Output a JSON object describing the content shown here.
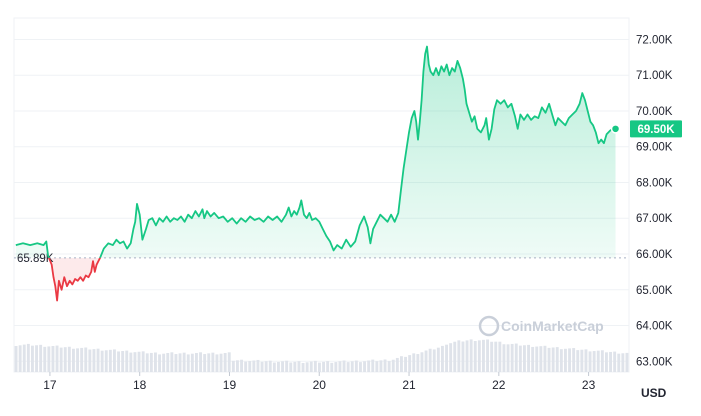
{
  "chart_data": {
    "type": "area",
    "currency": "USD",
    "reference_value": 65890,
    "reference_label": "65.89K",
    "last_value": 69500,
    "last_label": "69.50K",
    "ylim": [
      62700,
      72600
    ],
    "y_ticks": [
      {
        "value": 72000,
        "label": "72.00K"
      },
      {
        "value": 71000,
        "label": "71.00K"
      },
      {
        "value": 70000,
        "label": "70.00K"
      },
      {
        "value": 69000,
        "label": "69.00K"
      },
      {
        "value": 68000,
        "label": "68.00K"
      },
      {
        "value": 67000,
        "label": "67.00K"
      },
      {
        "value": 66000,
        "label": "66.00K"
      },
      {
        "value": 65000,
        "label": "65.00K"
      },
      {
        "value": 64000,
        "label": "64.00K"
      },
      {
        "value": 63000,
        "label": "63.00K"
      }
    ],
    "xlim": [
      16.6,
      23.45
    ],
    "x_ticks": [
      {
        "value": 17,
        "label": "17"
      },
      {
        "value": 18,
        "label": "18"
      },
      {
        "value": 19,
        "label": "19"
      },
      {
        "value": 20,
        "label": "20"
      },
      {
        "value": 21,
        "label": "21"
      },
      {
        "value": 22,
        "label": "22"
      },
      {
        "value": 23,
        "label": "23"
      }
    ],
    "grid": true,
    "colors": {
      "up": "#16c784",
      "down": "#ea3943",
      "volume": "#dfe3ea",
      "grid": "#eff2f5"
    },
    "watermark": "CoinMarketCap",
    "price_series": [
      [
        16.62,
        66250
      ],
      [
        16.7,
        66300
      ],
      [
        16.78,
        66250
      ],
      [
        16.86,
        66300
      ],
      [
        16.93,
        66250
      ],
      [
        16.96,
        66350
      ],
      [
        16.98,
        65950
      ],
      [
        17.02,
        65700
      ],
      [
        17.04,
        65350
      ],
      [
        17.06,
        65100
      ],
      [
        17.08,
        64700
      ],
      [
        17.1,
        65250
      ],
      [
        17.13,
        65000
      ],
      [
        17.16,
        65350
      ],
      [
        17.19,
        65100
      ],
      [
        17.22,
        65250
      ],
      [
        17.25,
        65150
      ],
      [
        17.28,
        65300
      ],
      [
        17.31,
        65250
      ],
      [
        17.34,
        65350
      ],
      [
        17.37,
        65250
      ],
      [
        17.4,
        65400
      ],
      [
        17.43,
        65350
      ],
      [
        17.46,
        65500
      ],
      [
        17.48,
        65800
      ],
      [
        17.5,
        65500
      ],
      [
        17.52,
        65700
      ],
      [
        17.56,
        65900
      ],
      [
        17.6,
        66150
      ],
      [
        17.65,
        66300
      ],
      [
        17.7,
        66250
      ],
      [
        17.74,
        66400
      ],
      [
        17.78,
        66300
      ],
      [
        17.82,
        66350
      ],
      [
        17.86,
        66150
      ],
      [
        17.9,
        66300
      ],
      [
        17.93,
        66700
      ],
      [
        17.95,
        66900
      ],
      [
        17.97,
        67400
      ],
      [
        18.0,
        67100
      ],
      [
        18.03,
        66400
      ],
      [
        18.07,
        66700
      ],
      [
        18.1,
        66950
      ],
      [
        18.14,
        67000
      ],
      [
        18.18,
        66800
      ],
      [
        18.22,
        67000
      ],
      [
        18.26,
        66900
      ],
      [
        18.3,
        67050
      ],
      [
        18.34,
        66900
      ],
      [
        18.38,
        67000
      ],
      [
        18.42,
        66950
      ],
      [
        18.46,
        67050
      ],
      [
        18.5,
        66900
      ],
      [
        18.54,
        67100
      ],
      [
        18.58,
        67000
      ],
      [
        18.62,
        67200
      ],
      [
        18.66,
        67050
      ],
      [
        18.7,
        67250
      ],
      [
        18.72,
        67000
      ],
      [
        18.75,
        67200
      ],
      [
        18.79,
        67050
      ],
      [
        18.83,
        67150
      ],
      [
        18.88,
        67000
      ],
      [
        18.93,
        67050
      ],
      [
        18.98,
        66900
      ],
      [
        19.03,
        67000
      ],
      [
        19.08,
        66850
      ],
      [
        19.13,
        67000
      ],
      [
        19.18,
        66900
      ],
      [
        19.23,
        67050
      ],
      [
        19.28,
        66950
      ],
      [
        19.33,
        67000
      ],
      [
        19.38,
        66900
      ],
      [
        19.43,
        67050
      ],
      [
        19.48,
        66950
      ],
      [
        19.53,
        67050
      ],
      [
        19.58,
        66900
      ],
      [
        19.63,
        67100
      ],
      [
        19.66,
        67300
      ],
      [
        19.69,
        67050
      ],
      [
        19.72,
        67200
      ],
      [
        19.75,
        67100
      ],
      [
        19.78,
        67300
      ],
      [
        19.8,
        67500
      ],
      [
        19.83,
        67100
      ],
      [
        19.86,
        67000
      ],
      [
        19.89,
        67150
      ],
      [
        19.92,
        66950
      ],
      [
        19.96,
        67000
      ],
      [
        20.0,
        66900
      ],
      [
        20.04,
        66700
      ],
      [
        20.08,
        66500
      ],
      [
        20.12,
        66350
      ],
      [
        20.16,
        66100
      ],
      [
        20.2,
        66250
      ],
      [
        20.25,
        66150
      ],
      [
        20.3,
        66400
      ],
      [
        20.35,
        66200
      ],
      [
        20.4,
        66350
      ],
      [
        20.45,
        66800
      ],
      [
        20.5,
        67050
      ],
      [
        20.54,
        66750
      ],
      [
        20.57,
        66300
      ],
      [
        20.6,
        66700
      ],
      [
        20.64,
        66900
      ],
      [
        20.68,
        67100
      ],
      [
        20.72,
        67000
      ],
      [
        20.76,
        66900
      ],
      [
        20.8,
        67100
      ],
      [
        20.84,
        66900
      ],
      [
        20.88,
        67150
      ],
      [
        20.91,
        67800
      ],
      [
        20.94,
        68400
      ],
      [
        20.97,
        68900
      ],
      [
        21.0,
        69400
      ],
      [
        21.03,
        69800
      ],
      [
        21.06,
        70000
      ],
      [
        21.08,
        69700
      ],
      [
        21.1,
        69200
      ],
      [
        21.12,
        69700
      ],
      [
        21.14,
        70300
      ],
      [
        21.16,
        71100
      ],
      [
        21.18,
        71600
      ],
      [
        21.2,
        71800
      ],
      [
        21.22,
        71300
      ],
      [
        21.24,
        71100
      ],
      [
        21.27,
        71000
      ],
      [
        21.3,
        71200
      ],
      [
        21.33,
        71000
      ],
      [
        21.36,
        71250
      ],
      [
        21.39,
        71100
      ],
      [
        21.42,
        71300
      ],
      [
        21.45,
        71000
      ],
      [
        21.48,
        71200
      ],
      [
        21.51,
        71100
      ],
      [
        21.54,
        71400
      ],
      [
        21.57,
        71200
      ],
      [
        21.6,
        70900
      ],
      [
        21.62,
        70600
      ],
      [
        21.64,
        70200
      ],
      [
        21.67,
        69950
      ],
      [
        21.7,
        69700
      ],
      [
        21.73,
        69850
      ],
      [
        21.76,
        69500
      ],
      [
        21.8,
        69400
      ],
      [
        21.84,
        69600
      ],
      [
        21.86,
        69800
      ],
      [
        21.89,
        69200
      ],
      [
        21.92,
        69500
      ],
      [
        21.95,
        70050
      ],
      [
        21.98,
        70300
      ],
      [
        22.02,
        70200
      ],
      [
        22.06,
        70300
      ],
      [
        22.1,
        70100
      ],
      [
        22.14,
        70200
      ],
      [
        22.18,
        69850
      ],
      [
        22.21,
        69500
      ],
      [
        22.24,
        69900
      ],
      [
        22.28,
        69750
      ],
      [
        22.32,
        69900
      ],
      [
        22.36,
        69750
      ],
      [
        22.4,
        69850
      ],
      [
        22.44,
        69800
      ],
      [
        22.48,
        70100
      ],
      [
        22.52,
        69950
      ],
      [
        22.56,
        70200
      ],
      [
        22.6,
        69850
      ],
      [
        22.63,
        69600
      ],
      [
        22.66,
        69800
      ],
      [
        22.7,
        69700
      ],
      [
        22.74,
        69600
      ],
      [
        22.78,
        69800
      ],
      [
        22.82,
        69900
      ],
      [
        22.86,
        70000
      ],
      [
        22.9,
        70200
      ],
      [
        22.93,
        70500
      ],
      [
        22.96,
        70300
      ],
      [
        22.99,
        70000
      ],
      [
        23.02,
        69700
      ],
      [
        23.05,
        69600
      ],
      [
        23.08,
        69400
      ],
      [
        23.11,
        69100
      ],
      [
        23.14,
        69200
      ],
      [
        23.17,
        69100
      ],
      [
        23.2,
        69350
      ],
      [
        23.24,
        69450
      ],
      [
        23.27,
        69500
      ],
      [
        23.3,
        69500
      ]
    ]
  }
}
